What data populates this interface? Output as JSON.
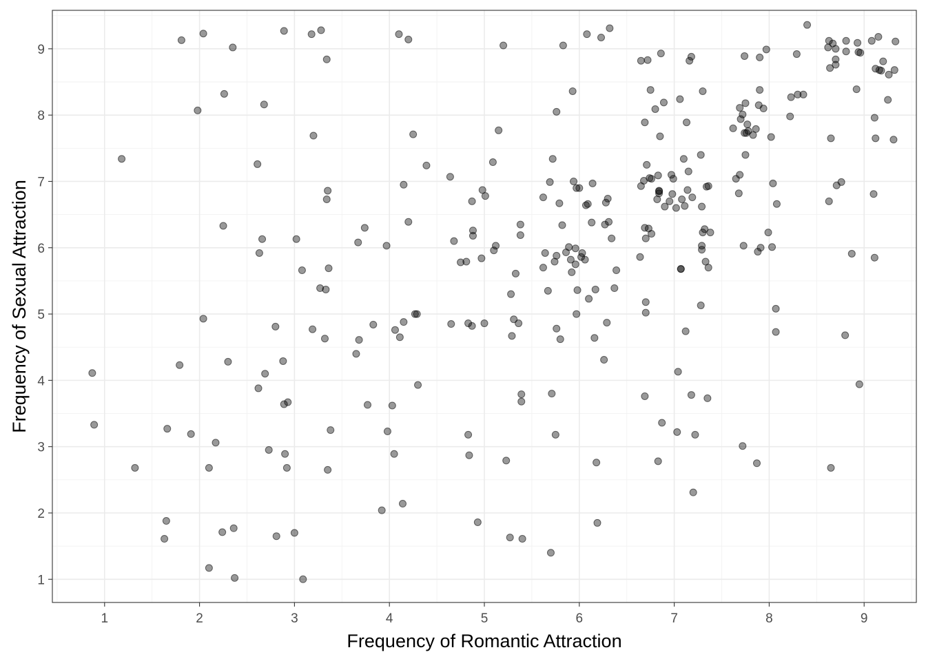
{
  "chart_data": {
    "type": "scatter",
    "title": "",
    "xlabel": "Frequency of Romantic Attraction",
    "ylabel": "Frequency of Sexual Attraction",
    "xlim": [
      0.45,
      9.55
    ],
    "ylim": [
      0.65,
      9.58
    ],
    "x_ticks": [
      1,
      2,
      3,
      4,
      5,
      6,
      7,
      8,
      9
    ],
    "y_ticks": [
      1,
      2,
      3,
      4,
      5,
      6,
      7,
      8,
      9
    ],
    "x_tick_labels": [
      "1",
      "2",
      "3",
      "4",
      "5",
      "6",
      "7",
      "8",
      "9"
    ],
    "y_tick_labels": [
      "1",
      "2",
      "3",
      "4",
      "5",
      "6",
      "7",
      "8",
      "9"
    ],
    "grid": true,
    "legend": "none",
    "point_color": "#000000",
    "point_alpha": 0.4,
    "points": [
      [
        0.87,
        4.11
      ],
      [
        0.89,
        3.33
      ],
      [
        1.18,
        7.34
      ],
      [
        1.32,
        2.68
      ],
      [
        1.63,
        1.61
      ],
      [
        1.65,
        1.88
      ],
      [
        1.66,
        3.27
      ],
      [
        1.79,
        4.23
      ],
      [
        1.81,
        9.13
      ],
      [
        1.91,
        3.19
      ],
      [
        1.98,
        8.07
      ],
      [
        2.04,
        9.23
      ],
      [
        2.04,
        4.93
      ],
      [
        2.1,
        1.17
      ],
      [
        2.1,
        2.68
      ],
      [
        2.17,
        3.06
      ],
      [
        2.24,
        1.71
      ],
      [
        2.25,
        6.33
      ],
      [
        2.26,
        8.32
      ],
      [
        2.3,
        4.28
      ],
      [
        2.35,
        9.02
      ],
      [
        2.36,
        1.77
      ],
      [
        2.37,
        1.02
      ],
      [
        2.61,
        7.26
      ],
      [
        2.62,
        3.88
      ],
      [
        2.63,
        5.92
      ],
      [
        2.66,
        6.13
      ],
      [
        2.68,
        8.16
      ],
      [
        2.69,
        4.1
      ],
      [
        2.73,
        2.95
      ],
      [
        2.8,
        4.81
      ],
      [
        2.81,
        1.65
      ],
      [
        2.88,
        4.29
      ],
      [
        2.89,
        9.27
      ],
      [
        2.89,
        3.64
      ],
      [
        2.9,
        2.89
      ],
      [
        2.92,
        2.68
      ],
      [
        2.93,
        3.67
      ],
      [
        3.0,
        1.7
      ],
      [
        3.02,
        6.13
      ],
      [
        3.08,
        5.66
      ],
      [
        3.09,
        1.0
      ],
      [
        3.18,
        9.22
      ],
      [
        3.19,
        4.77
      ],
      [
        3.2,
        7.69
      ],
      [
        3.27,
        5.39
      ],
      [
        3.28,
        9.28
      ],
      [
        3.32,
        4.63
      ],
      [
        3.33,
        5.37
      ],
      [
        3.34,
        8.84
      ],
      [
        3.34,
        6.73
      ],
      [
        3.35,
        6.86
      ],
      [
        3.35,
        2.65
      ],
      [
        3.36,
        5.69
      ],
      [
        3.38,
        3.25
      ],
      [
        3.65,
        4.4
      ],
      [
        3.67,
        6.08
      ],
      [
        3.68,
        4.61
      ],
      [
        3.74,
        6.3
      ],
      [
        3.77,
        3.63
      ],
      [
        3.83,
        4.84
      ],
      [
        3.92,
        2.04
      ],
      [
        3.97,
        6.03
      ],
      [
        3.98,
        3.23
      ],
      [
        4.03,
        3.62
      ],
      [
        4.05,
        2.89
      ],
      [
        4.06,
        4.76
      ],
      [
        4.1,
        9.22
      ],
      [
        4.11,
        4.65
      ],
      [
        4.14,
        2.14
      ],
      [
        4.15,
        6.95
      ],
      [
        4.15,
        4.88
      ],
      [
        4.2,
        6.39
      ],
      [
        4.2,
        9.14
      ],
      [
        4.25,
        7.71
      ],
      [
        4.27,
        5.0
      ],
      [
        4.29,
        5.0
      ],
      [
        4.3,
        3.93
      ],
      [
        4.39,
        7.24
      ],
      [
        4.64,
        7.07
      ],
      [
        4.65,
        4.85
      ],
      [
        4.68,
        6.1
      ],
      [
        4.75,
        5.78
      ],
      [
        4.81,
        5.79
      ],
      [
        4.83,
        4.86
      ],
      [
        4.83,
        3.18
      ],
      [
        4.84,
        2.87
      ],
      [
        4.87,
        4.82
      ],
      [
        4.87,
        6.7
      ],
      [
        4.88,
        6.26
      ],
      [
        4.88,
        6.18
      ],
      [
        4.93,
        1.86
      ],
      [
        4.97,
        5.84
      ],
      [
        4.98,
        6.87
      ],
      [
        5.0,
        4.86
      ],
      [
        5.01,
        6.78
      ],
      [
        5.09,
        7.29
      ],
      [
        5.1,
        5.96
      ],
      [
        5.12,
        6.03
      ],
      [
        5.15,
        7.77
      ],
      [
        5.2,
        9.05
      ],
      [
        5.23,
        2.79
      ],
      [
        5.27,
        1.63
      ],
      [
        5.28,
        5.3
      ],
      [
        5.29,
        4.67
      ],
      [
        5.31,
        4.92
      ],
      [
        5.33,
        5.61
      ],
      [
        5.36,
        4.86
      ],
      [
        5.38,
        6.35
      ],
      [
        5.38,
        6.19
      ],
      [
        5.39,
        3.79
      ],
      [
        5.39,
        3.68
      ],
      [
        5.4,
        1.61
      ],
      [
        5.62,
        6.76
      ],
      [
        5.62,
        5.7
      ],
      [
        5.64,
        5.92
      ],
      [
        5.67,
        5.35
      ],
      [
        5.69,
        6.99
      ],
      [
        5.7,
        1.4
      ],
      [
        5.71,
        3.8
      ],
      [
        5.72,
        7.34
      ],
      [
        5.74,
        5.79
      ],
      [
        5.75,
        3.18
      ],
      [
        5.76,
        4.78
      ],
      [
        5.76,
        5.88
      ],
      [
        5.76,
        8.05
      ],
      [
        5.79,
        6.67
      ],
      [
        5.8,
        4.62
      ],
      [
        5.82,
        6.34
      ],
      [
        5.83,
        9.05
      ],
      [
        5.86,
        5.93
      ],
      [
        5.89,
        6.01
      ],
      [
        5.91,
        5.82
      ],
      [
        5.92,
        5.63
      ],
      [
        5.93,
        8.36
      ],
      [
        5.94,
        7.0
      ],
      [
        5.96,
        5.75
      ],
      [
        5.96,
        5.99
      ],
      [
        5.97,
        5.0
      ],
      [
        5.97,
        6.9
      ],
      [
        5.98,
        5.36
      ],
      [
        6.0,
        6.9
      ],
      [
        6.02,
        5.86
      ],
      [
        6.03,
        5.92
      ],
      [
        6.06,
        5.82
      ],
      [
        6.07,
        6.64
      ],
      [
        6.08,
        9.22
      ],
      [
        6.09,
        6.66
      ],
      [
        6.1,
        5.23
      ],
      [
        6.13,
        6.38
      ],
      [
        6.14,
        6.97
      ],
      [
        6.16,
        4.64
      ],
      [
        6.17,
        5.37
      ],
      [
        6.18,
        2.76
      ],
      [
        6.19,
        1.85
      ],
      [
        6.23,
        9.17
      ],
      [
        6.26,
        4.31
      ],
      [
        6.27,
        6.35
      ],
      [
        6.28,
        6.68
      ],
      [
        6.29,
        4.87
      ],
      [
        6.3,
        6.74
      ],
      [
        6.31,
        6.39
      ],
      [
        6.32,
        9.31
      ],
      [
        6.34,
        6.14
      ],
      [
        6.37,
        5.39
      ],
      [
        6.39,
        5.66
      ],
      [
        6.64,
        5.86
      ],
      [
        6.65,
        8.82
      ],
      [
        6.65,
        6.93
      ],
      [
        6.68,
        7.01
      ],
      [
        6.69,
        7.89
      ],
      [
        6.69,
        6.3
      ],
      [
        6.69,
        3.76
      ],
      [
        6.7,
        6.14
      ],
      [
        6.7,
        5.18
      ],
      [
        6.7,
        5.02
      ],
      [
        6.71,
        7.25
      ],
      [
        6.72,
        8.83
      ],
      [
        6.73,
        6.29
      ],
      [
        6.74,
        7.05
      ],
      [
        6.75,
        8.38
      ],
      [
        6.76,
        6.21
      ],
      [
        6.76,
        7.04
      ],
      [
        6.8,
        8.09
      ],
      [
        6.82,
        6.73
      ],
      [
        6.83,
        7.09
      ],
      [
        6.83,
        2.78
      ],
      [
        6.84,
        6.85
      ],
      [
        6.84,
        6.82
      ],
      [
        6.84,
        6.86
      ],
      [
        6.85,
        7.68
      ],
      [
        6.86,
        8.93
      ],
      [
        6.87,
        3.36
      ],
      [
        6.89,
        8.19
      ],
      [
        6.9,
        6.62
      ],
      [
        6.95,
        6.7
      ],
      [
        6.97,
        7.1
      ],
      [
        6.98,
        6.81
      ],
      [
        6.99,
        7.04
      ],
      [
        7.02,
        6.6
      ],
      [
        7.03,
        3.22
      ],
      [
        7.04,
        4.13
      ],
      [
        7.06,
        8.24
      ],
      [
        7.07,
        5.68
      ],
      [
        7.07,
        5.68
      ],
      [
        7.08,
        6.73
      ],
      [
        7.1,
        7.34
      ],
      [
        7.11,
        6.63
      ],
      [
        7.12,
        4.74
      ],
      [
        7.13,
        7.89
      ],
      [
        7.14,
        6.87
      ],
      [
        7.15,
        7.15
      ],
      [
        7.16,
        8.82
      ],
      [
        7.18,
        8.88
      ],
      [
        7.18,
        3.78
      ],
      [
        7.19,
        6.76
      ],
      [
        7.2,
        2.31
      ],
      [
        7.22,
        3.18
      ],
      [
        7.28,
        5.13
      ],
      [
        7.28,
        7.4
      ],
      [
        7.29,
        6.62
      ],
      [
        7.29,
        5.97
      ],
      [
        7.29,
        6.03
      ],
      [
        7.3,
        6.23
      ],
      [
        7.3,
        8.36
      ],
      [
        7.32,
        6.28
      ],
      [
        7.33,
        5.79
      ],
      [
        7.34,
        6.92
      ],
      [
        7.35,
        3.73
      ],
      [
        7.36,
        5.7
      ],
      [
        7.36,
        6.93
      ],
      [
        7.38,
        6.23
      ],
      [
        7.62,
        7.8
      ],
      [
        7.65,
        7.04
      ],
      [
        7.68,
        6.82
      ],
      [
        7.69,
        7.1
      ],
      [
        7.69,
        8.11
      ],
      [
        7.7,
        7.94
      ],
      [
        7.72,
        8.01
      ],
      [
        7.72,
        3.01
      ],
      [
        7.73,
        6.03
      ],
      [
        7.74,
        8.89
      ],
      [
        7.74,
        7.73
      ],
      [
        7.75,
        8.18
      ],
      [
        7.75,
        7.4
      ],
      [
        7.76,
        7.73
      ],
      [
        7.77,
        7.86
      ],
      [
        7.78,
        7.76
      ],
      [
        7.83,
        7.7
      ],
      [
        7.86,
        7.79
      ],
      [
        7.87,
        2.75
      ],
      [
        7.88,
        5.94
      ],
      [
        7.89,
        8.15
      ],
      [
        7.9,
        8.38
      ],
      [
        7.9,
        8.87
      ],
      [
        7.91,
        6.0
      ],
      [
        7.94,
        8.1
      ],
      [
        7.97,
        8.99
      ],
      [
        7.99,
        6.23
      ],
      [
        8.02,
        7.67
      ],
      [
        8.03,
        6.01
      ],
      [
        8.04,
        6.97
      ],
      [
        8.07,
        5.08
      ],
      [
        8.07,
        4.73
      ],
      [
        8.08,
        6.66
      ],
      [
        8.22,
        7.98
      ],
      [
        8.23,
        8.27
      ],
      [
        8.29,
        8.92
      ],
      [
        8.3,
        8.31
      ],
      [
        8.36,
        8.31
      ],
      [
        8.4,
        9.36
      ],
      [
        8.62,
        9.02
      ],
      [
        8.63,
        6.7
      ],
      [
        8.63,
        9.12
      ],
      [
        8.64,
        8.71
      ],
      [
        8.65,
        2.68
      ],
      [
        8.65,
        7.65
      ],
      [
        8.67,
        9.08
      ],
      [
        8.7,
        8.84
      ],
      [
        8.7,
        8.76
      ],
      [
        8.7,
        9.0
      ],
      [
        8.71,
        6.94
      ],
      [
        8.76,
        6.99
      ],
      [
        8.8,
        4.68
      ],
      [
        8.81,
        9.12
      ],
      [
        8.81,
        8.96
      ],
      [
        8.87,
        5.91
      ],
      [
        8.92,
        8.39
      ],
      [
        8.93,
        9.09
      ],
      [
        8.94,
        8.95
      ],
      [
        8.95,
        3.94
      ],
      [
        8.96,
        8.94
      ],
      [
        9.08,
        9.12
      ],
      [
        9.1,
        6.81
      ],
      [
        9.11,
        7.96
      ],
      [
        9.11,
        5.85
      ],
      [
        9.12,
        8.7
      ],
      [
        9.12,
        7.65
      ],
      [
        9.15,
        9.18
      ],
      [
        9.16,
        8.68
      ],
      [
        9.18,
        8.67
      ],
      [
        9.2,
        8.81
      ],
      [
        9.25,
        8.23
      ],
      [
        9.26,
        8.61
      ],
      [
        9.31,
        7.63
      ],
      [
        9.32,
        8.68
      ],
      [
        9.33,
        9.11
      ]
    ]
  }
}
